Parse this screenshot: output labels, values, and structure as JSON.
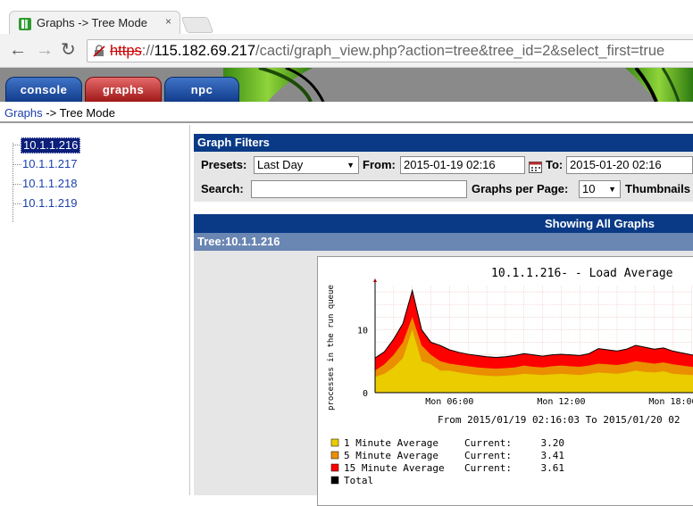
{
  "browser": {
    "tab_title": "Graphs -> Tree Mode",
    "close_glyph": "×",
    "url_protocol": "https",
    "url_sep": "://",
    "url_host": "115.182.69.217",
    "url_path": "/cacti/graph_view.php?action=tree&tree_id=2&select_first=true"
  },
  "nav_tabs": [
    "console",
    "graphs",
    "npc"
  ],
  "breadcrumb": {
    "link": "Graphs",
    "sep": " -> ",
    "current": "Tree Mode"
  },
  "tree": {
    "items": [
      "10.1.1.216",
      "10.1.1.217",
      "10.1.1.218",
      "10.1.1.219"
    ],
    "selected_index": 0
  },
  "filters": {
    "title": "Graph Filters",
    "presets_label": "Presets:",
    "presets_value": "Last Day",
    "from_label": "From:",
    "from_value": "2015-01-19 02:16",
    "to_label": "To:",
    "to_value": "2015-01-20 02:16",
    "search_label": "Search:",
    "search_value": "",
    "per_page_label": "Graphs per Page:",
    "per_page_value": "10",
    "thumbnails_label": "Thumbnails"
  },
  "showing_label": "Showing All Graphs",
  "tree_header": {
    "prefix": "Tree:",
    "host": "10.1.1.216"
  },
  "graph": {
    "title": "10.1.1.216- - Load Average",
    "ylabel": "processes in the run queue",
    "period_text": "From 2015/01/19 02:16:03 To 2015/01/20 02",
    "legend": [
      {
        "name": "1 Minute Average",
        "current_label": "Current:",
        "current": "3.20",
        "color": "#EACC00"
      },
      {
        "name": "5 Minute Average",
        "current_label": "Current:",
        "current": "3.41",
        "color": "#EA8F00"
      },
      {
        "name": "15 Minute Average",
        "current_label": "Current:",
        "current": "3.61",
        "color": "#FF0000"
      },
      {
        "name": "Total",
        "current_label": "",
        "current": "",
        "color": "#000000"
      }
    ]
  },
  "chart_data": {
    "type": "area",
    "title": "10.1.1.216- - Load Average",
    "ylabel": "processes in the run queue",
    "x_tick_labels": [
      "Mon 06:00",
      "Mon 12:00",
      "Mon 18:00"
    ],
    "y_tick_labels": [
      "0",
      "10"
    ],
    "ylim": [
      0,
      17
    ],
    "x_hours": [
      0,
      0.5,
      1,
      1.5,
      2,
      2.5,
      3,
      3.5,
      4,
      4.5,
      5,
      5.5,
      6,
      6.5,
      7,
      7.5,
      8,
      8.5,
      9,
      9.5,
      10,
      10.5,
      11,
      11.5,
      12,
      12.5,
      13,
      13.5,
      14,
      14.5,
      15,
      15.5,
      16,
      16.5,
      17,
      17.5,
      18,
      18.5,
      19
    ],
    "xlim": [
      0,
      19
    ],
    "x_ticks_hours": [
      4,
      10,
      16
    ],
    "series": [
      {
        "name": "1 Minute Average",
        "color": "#EACC00",
        "values": [
          2.5,
          3,
          4,
          5.5,
          10,
          5,
          4.5,
          3.5,
          3.5,
          3.2,
          3,
          2.8,
          2.7,
          2.6,
          2.7,
          2.8,
          3,
          2.9,
          2.8,
          2.9,
          3,
          2.9,
          2.8,
          3,
          3.2,
          3.1,
          3,
          3.2,
          3.5,
          3.3,
          3.2,
          3.4,
          3,
          2.9,
          2.8,
          2.6,
          2.4,
          2.3,
          2.2
        ]
      },
      {
        "name": "5 Minute Average",
        "color": "#EA8F00",
        "values": [
          3.5,
          4.5,
          6,
          8,
          12,
          7.5,
          6,
          5,
          4.6,
          4.4,
          4.2,
          4,
          3.9,
          3.8,
          3.9,
          4,
          4.3,
          4.1,
          4,
          4.2,
          4.3,
          4.2,
          4.1,
          4.3,
          4.6,
          4.5,
          4.4,
          4.6,
          5,
          4.8,
          4.6,
          4.8,
          4.5,
          4.3,
          4.1,
          3.9,
          3.7,
          3.5,
          3.4
        ]
      },
      {
        "name": "15 Minute Average",
        "color": "#FF0000",
        "values": [
          5.5,
          6.5,
          8.5,
          11,
          16.2,
          10,
          8,
          7.5,
          6.8,
          6.4,
          6.1,
          5.9,
          5.7,
          5.6,
          5.7,
          5.9,
          6.2,
          6,
          5.8,
          6,
          6.1,
          6,
          5.9,
          6.2,
          7,
          6.8,
          6.6,
          6.9,
          7.5,
          7.2,
          6.9,
          7.1,
          6.6,
          6.3,
          6,
          5.8,
          5.5,
          5.3,
          5.2
        ]
      }
    ]
  }
}
